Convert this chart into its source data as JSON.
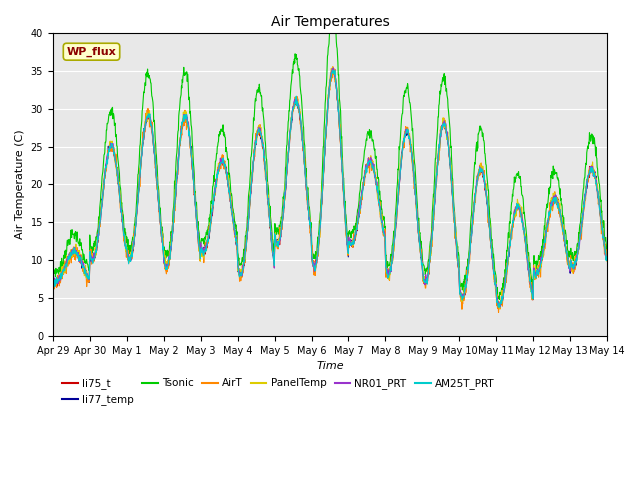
{
  "title": "Air Temperatures",
  "xlabel": "Time",
  "ylabel": "Air Temperature (C)",
  "ylim": [
    0,
    40
  ],
  "annotation_text": "WP_flux",
  "annotation_color": "#8B0000",
  "annotation_bg": "#FFFFCC",
  "bg_color": "#E8E8E8",
  "series": [
    {
      "name": "li75_t",
      "color": "#CC0000"
    },
    {
      "name": "li77_temp",
      "color": "#000099"
    },
    {
      "name": "Tsonic",
      "color": "#00CC00"
    },
    {
      "name": "AirT",
      "color": "#FF8800"
    },
    {
      "name": "PanelTemp",
      "color": "#DDCC00"
    },
    {
      "name": "NR01_PRT",
      "color": "#9933CC"
    },
    {
      "name": "AM25T_PRT",
      "color": "#00CCCC"
    }
  ],
  "xtick_labels": [
    "Apr 29",
    "Apr 30",
    "May 1",
    "May 2",
    "May 3",
    "May 4",
    "May 5",
    "May 6",
    "May 7",
    "May 8",
    "May 9",
    "May 10",
    "May 11",
    "May 12",
    "May 13",
    "May 14"
  ],
  "day_peaks": [
    11,
    25,
    29,
    29,
    23,
    27,
    31,
    35,
    23,
    27,
    28,
    22,
    17,
    18,
    22,
    26
  ],
  "day_mins": [
    7,
    10,
    10,
    9,
    11,
    8,
    12,
    9,
    12,
    8,
    7,
    5,
    4,
    8,
    9,
    9
  ],
  "tsonic_extra": 4.5,
  "lw": 0.8
}
